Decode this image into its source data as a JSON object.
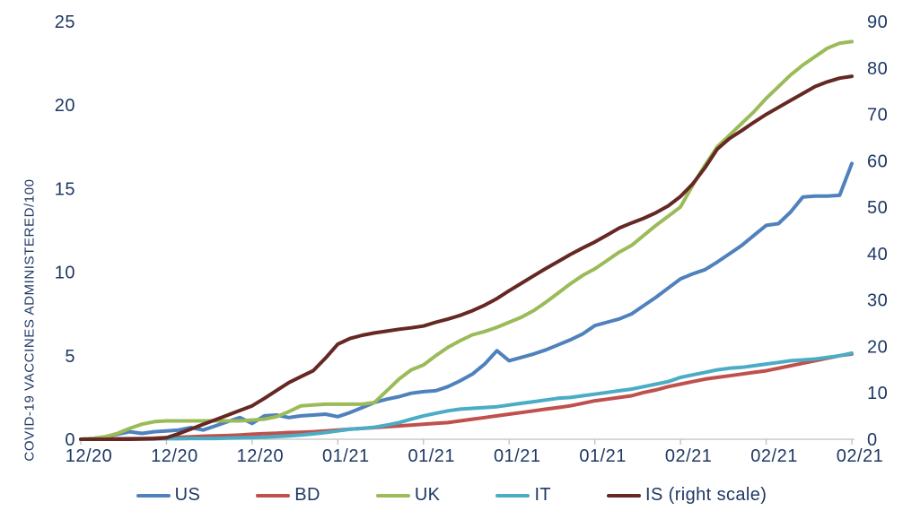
{
  "colors": {
    "text": "#1F3864",
    "axis": "#BFBFBF",
    "background": "#FFFFFF"
  },
  "chart_data": {
    "type": "line",
    "title": "",
    "ylabel_left": "COVID-19 VACCINES ADMINISTERED/100",
    "ylabel_right": "",
    "xlabel": "",
    "grid": false,
    "legend_position": "bottom",
    "x_unit": "days since 2020-12-14 (weekly ticks)",
    "x_domain": [
      0,
      63
    ],
    "tick_days": [
      0,
      7,
      14,
      21,
      28,
      35,
      42,
      49,
      56,
      63
    ],
    "x_tick_labels": [
      "12/20",
      "12/20",
      "12/20",
      "01/21",
      "01/21",
      "01/21",
      "01/21",
      "02/21",
      "02/21",
      "02/21"
    ],
    "left_axis": {
      "min": 0,
      "max": 25,
      "ticks": [
        0,
        5,
        10,
        15,
        20,
        25
      ]
    },
    "right_axis": {
      "min": 0,
      "max": 90,
      "ticks": [
        0,
        10,
        20,
        30,
        40,
        50,
        60,
        70,
        80,
        90
      ]
    },
    "series": [
      {
        "name": "US",
        "axis": "left",
        "color": "#4F81BD",
        "values": [
          0,
          0.05,
          0.15,
          0.3,
          0.45,
          0.35,
          0.45,
          0.5,
          0.55,
          0.7,
          0.55,
          0.8,
          1.05,
          1.3,
          0.95,
          1.4,
          1.45,
          1.3,
          1.4,
          1.45,
          1.5,
          1.35,
          1.6,
          1.9,
          2.2,
          2.4,
          2.55,
          2.75,
          2.85,
          2.9,
          3.15,
          3.5,
          3.9,
          4.5,
          5.3,
          4.7,
          4.9,
          5.1,
          5.35,
          5.65,
          5.95,
          6.3,
          6.8,
          7.0,
          7.2,
          7.5,
          8.0,
          8.5,
          9.05,
          9.6,
          9.9,
          10.15,
          10.6,
          11.1,
          11.6,
          12.2,
          12.8,
          12.9,
          13.6,
          14.5,
          14.55,
          14.55,
          14.6,
          16.5
        ]
      },
      {
        "name": "BD",
        "axis": "left",
        "color": "#C0504D",
        "values": [
          0,
          0,
          0.02,
          0.03,
          0.05,
          0.05,
          0.07,
          0.1,
          0.12,
          0.15,
          0.18,
          0.2,
          0.22,
          0.25,
          0.3,
          0.33,
          0.36,
          0.4,
          0.42,
          0.45,
          0.5,
          0.55,
          0.6,
          0.65,
          0.7,
          0.75,
          0.8,
          0.85,
          0.9,
          0.95,
          1.0,
          1.1,
          1.2,
          1.3,
          1.4,
          1.5,
          1.6,
          1.7,
          1.8,
          1.9,
          2.0,
          2.15,
          2.3,
          2.4,
          2.5,
          2.6,
          2.8,
          2.95,
          3.15,
          3.3,
          3.45,
          3.6,
          3.7,
          3.8,
          3.9,
          4.0,
          4.1,
          4.25,
          4.4,
          4.55,
          4.7,
          4.85,
          5.0,
          5.1
        ]
      },
      {
        "name": "UK",
        "axis": "left",
        "color": "#9BBB59",
        "values": [
          0,
          0.05,
          0.15,
          0.35,
          0.65,
          0.9,
          1.05,
          1.1,
          1.1,
          1.1,
          1.1,
          1.1,
          1.1,
          1.1,
          1.15,
          1.2,
          1.35,
          1.65,
          2.0,
          2.05,
          2.1,
          2.1,
          2.1,
          2.1,
          2.2,
          2.9,
          3.6,
          4.15,
          4.45,
          5.0,
          5.5,
          5.9,
          6.25,
          6.45,
          6.7,
          7.0,
          7.3,
          7.7,
          8.2,
          8.75,
          9.3,
          9.8,
          10.2,
          10.7,
          11.2,
          11.6,
          12.2,
          12.8,
          13.35,
          13.9,
          15.2,
          16.4,
          17.5,
          18.2,
          18.9,
          19.6,
          20.4,
          21.1,
          21.8,
          22.4,
          22.9,
          23.4,
          23.7,
          23.8
        ]
      },
      {
        "name": "IT",
        "axis": "left",
        "color": "#4BACC6",
        "values": [
          0,
          0,
          0,
          0,
          0.02,
          0.02,
          0.02,
          0.03,
          0.03,
          0.05,
          0.05,
          0.05,
          0.07,
          0.08,
          0.1,
          0.13,
          0.16,
          0.2,
          0.25,
          0.32,
          0.4,
          0.5,
          0.6,
          0.65,
          0.72,
          0.85,
          1.0,
          1.2,
          1.4,
          1.55,
          1.7,
          1.8,
          1.85,
          1.9,
          1.95,
          2.05,
          2.15,
          2.25,
          2.35,
          2.45,
          2.5,
          2.6,
          2.7,
          2.8,
          2.9,
          3.0,
          3.15,
          3.3,
          3.45,
          3.7,
          3.85,
          4.0,
          4.15,
          4.25,
          4.3,
          4.4,
          4.5,
          4.6,
          4.7,
          4.75,
          4.8,
          4.9,
          5.0,
          5.15
        ]
      },
      {
        "name": "IS (right scale)",
        "axis": "right",
        "color": "#652823",
        "values": [
          0,
          0,
          0,
          0,
          0,
          0.05,
          0.1,
          0.3,
          1.2,
          2.2,
          3.2,
          4.2,
          5.2,
          6.2,
          7.2,
          8.8,
          10.5,
          12.2,
          13.5,
          14.8,
          17.5,
          20.5,
          21.7,
          22.4,
          22.9,
          23.3,
          23.7,
          24.0,
          24.4,
          25.2,
          25.9,
          26.7,
          27.7,
          28.9,
          30.3,
          32.0,
          33.6,
          35.2,
          36.8,
          38.3,
          39.8,
          41.2,
          42.5,
          44.0,
          45.5,
          46.6,
          47.6,
          48.8,
          50.3,
          52.3,
          55.0,
          58.5,
          62.5,
          64.8,
          66.5,
          68.3,
          70.0,
          71.5,
          73.0,
          74.5,
          76.0,
          77.0,
          77.8,
          78.2
        ]
      }
    ]
  }
}
